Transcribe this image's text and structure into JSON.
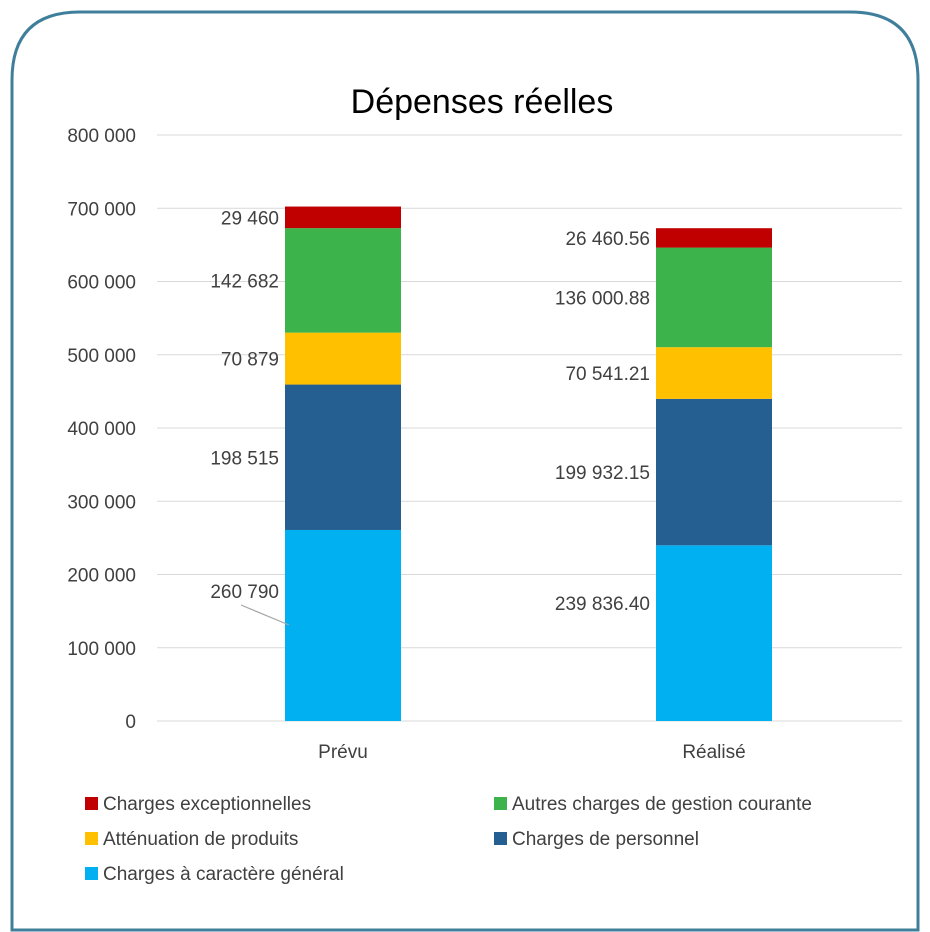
{
  "chart_data": {
    "type": "bar",
    "stacked": true,
    "title": "Dépenses réelles",
    "categories": [
      "Prévu",
      "Réalisé"
    ],
    "ylim": [
      0,
      800000
    ],
    "y_ticks": [
      0,
      100000,
      200000,
      300000,
      400000,
      500000,
      600000,
      700000,
      800000
    ],
    "y_tick_labels": [
      "0",
      "100 000",
      "200 000",
      "300 000",
      "400 000",
      "500 000",
      "600 000",
      "700 000",
      "800 000"
    ],
    "grid": true,
    "legend_position": "bottom",
    "series": [
      {
        "name": "Charges à caractère général",
        "color": "#00B0F0",
        "values": [
          260790,
          239836.4
        ],
        "labels": [
          "260 790",
          "239 836.40"
        ]
      },
      {
        "name": "Charges de personnel",
        "color": "#255E91",
        "values": [
          198515,
          199932.15
        ],
        "labels": [
          "198 515",
          "199 932.15"
        ]
      },
      {
        "name": "Atténuation de produits",
        "color": "#FFC000",
        "values": [
          70879,
          70541.21
        ],
        "labels": [
          "70 879",
          "70 541.21"
        ]
      },
      {
        "name": "Autres charges de gestion courante",
        "color": "#3CB44B",
        "values": [
          142682,
          136000.88
        ],
        "labels": [
          "142 682",
          "136 000.88"
        ]
      },
      {
        "name": "Charges exceptionnelles",
        "color": "#C00000",
        "values": [
          29460,
          26460.56
        ],
        "labels": [
          "29 460",
          "26 460.56"
        ]
      }
    ],
    "legend_order": [
      "Charges exceptionnelles",
      "Autres charges de gestion courante",
      "Atténuation de produits",
      "Charges de personnel",
      "Charges à caractère général"
    ]
  }
}
